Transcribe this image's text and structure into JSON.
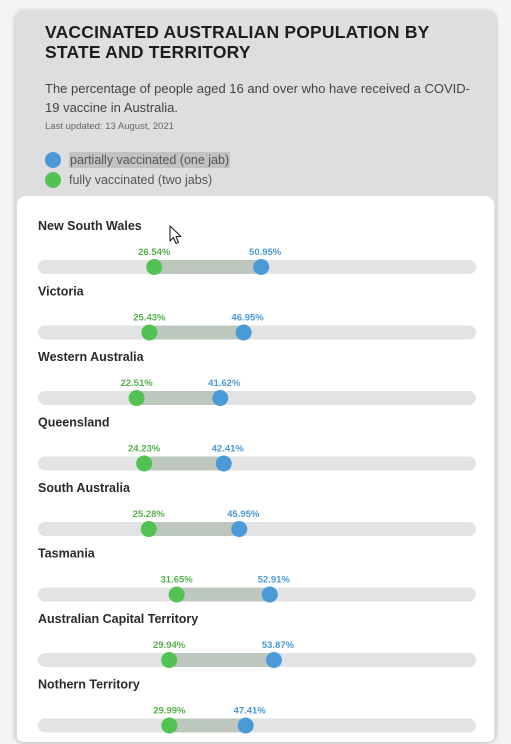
{
  "header": {
    "title": "VACCINATED AUSTRALIAN POPULATION BY STATE AND TERRITORY",
    "subtitle": "The percentage of people aged 16 and over who have received a COVID-19 vaccine in Australia.",
    "last_updated": "Last updated: 13 August, 2021"
  },
  "legend": [
    {
      "label": "partially vaccinated (one jab)",
      "color": "#4a9ad8"
    },
    {
      "label": "fully vaccinated (two jabs)",
      "color": "#52c353"
    }
  ],
  "colors": {
    "partial": "#4a9ad8",
    "full": "#52c353",
    "track": "#e3e3e3",
    "range": "#bec7be",
    "full_text": "#56b14c",
    "partial_text": "#4a9ad8"
  },
  "chart_data": {
    "type": "dumbbell",
    "ylabel": "",
    "xlim": [
      0,
      100
    ],
    "series": [
      {
        "name": "fully vaccinated (two jabs)",
        "key": "full"
      },
      {
        "name": "partially vaccinated (one jab)",
        "key": "partial"
      }
    ],
    "categories": [
      "New South Wales",
      "Victoria",
      "Western Australia",
      "Queensland",
      "South Australia",
      "Tasmania",
      "Australian Capital Territory",
      "Nothern Territory"
    ],
    "rows": [
      {
        "state": "New South Wales",
        "full": 26.54,
        "partial": 50.95,
        "full_label": "26.54%",
        "partial_label": "50.95%"
      },
      {
        "state": "Victoria",
        "full": 25.43,
        "partial": 46.95,
        "full_label": "25.43%",
        "partial_label": "46.95%"
      },
      {
        "state": "Western Australia",
        "full": 22.51,
        "partial": 41.62,
        "full_label": "22.51%",
        "partial_label": "41.62%"
      },
      {
        "state": "Queensland",
        "full": 24.23,
        "partial": 42.41,
        "full_label": "24.23%",
        "partial_label": "42.41%"
      },
      {
        "state": "South Australia",
        "full": 25.28,
        "partial": 45.95,
        "full_label": "25.28%",
        "partial_label": "45.95%"
      },
      {
        "state": "Tasmania",
        "full": 31.65,
        "partial": 52.91,
        "full_label": "31.65%",
        "partial_label": "52.91%"
      },
      {
        "state": "Australian Capital Territory",
        "full": 29.94,
        "partial": 53.87,
        "full_label": "29.94%",
        "partial_label": "53.87%"
      },
      {
        "state": "Nothern Territory",
        "full": 29.99,
        "partial": 47.41,
        "full_label": "29.99%",
        "partial_label": "47.41%"
      }
    ]
  }
}
